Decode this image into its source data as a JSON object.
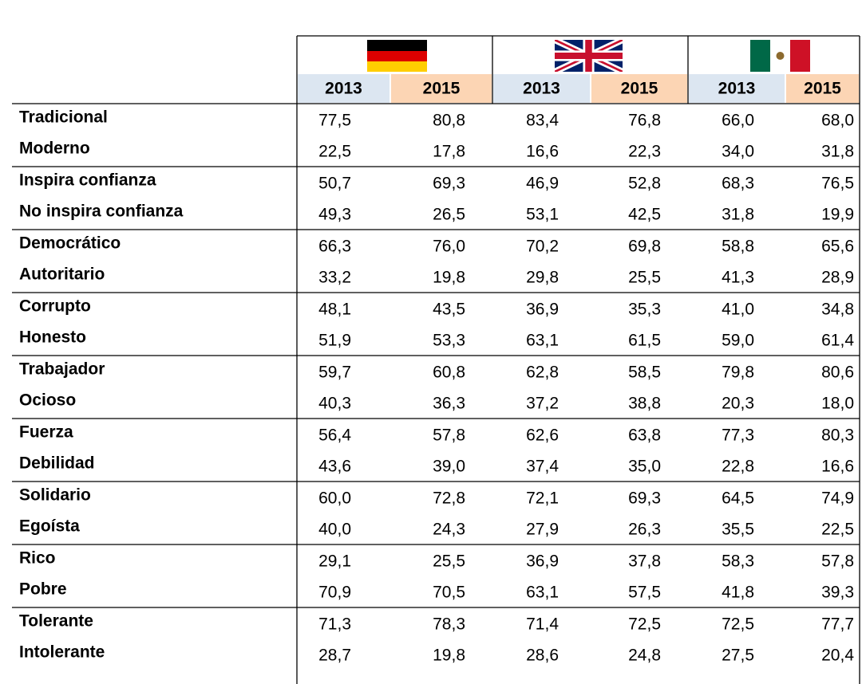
{
  "table": {
    "columns": [
      "2013",
      "2015",
      "2013",
      "2015",
      "2013",
      "2015"
    ],
    "rows": [
      {
        "label": "Tradicional",
        "values": [
          "77,5",
          "80,8",
          "83,4",
          "76,8",
          "66,0",
          "68,0"
        ]
      },
      {
        "label": "Moderno",
        "values": [
          "22,5",
          "17,8",
          "16,6",
          "22,3",
          "34,0",
          "31,8"
        ]
      },
      {
        "label": "Inspira confianza",
        "values": [
          "50,7",
          "69,3",
          "46,9",
          "52,8",
          "68,3",
          "76,5"
        ]
      },
      {
        "label": "No inspira confianza",
        "values": [
          "49,3",
          "26,5",
          "53,1",
          "42,5",
          "31,8",
          "19,9"
        ]
      },
      {
        "label": "Democrático",
        "values": [
          "66,3",
          "76,0",
          "70,2",
          "69,8",
          "58,8",
          "65,6"
        ]
      },
      {
        "label": "Autoritario",
        "values": [
          "33,2",
          "19,8",
          "29,8",
          "25,5",
          "41,3",
          "28,9"
        ]
      },
      {
        "label": "Corrupto",
        "values": [
          "48,1",
          "43,5",
          "36,9",
          "35,3",
          "41,0",
          "34,8"
        ]
      },
      {
        "label": "Honesto",
        "values": [
          "51,9",
          "53,3",
          "63,1",
          "61,5",
          "59,0",
          "61,4"
        ]
      },
      {
        "label": "Trabajador",
        "values": [
          "59,7",
          "60,8",
          "62,8",
          "58,5",
          "79,8",
          "80,6"
        ]
      },
      {
        "label": "Ocioso",
        "values": [
          "40,3",
          "36,3",
          "37,2",
          "38,8",
          "20,3",
          "18,0"
        ]
      },
      {
        "label": "Fuerza",
        "values": [
          "56,4",
          "57,8",
          "62,6",
          "63,8",
          "77,3",
          "80,3"
        ]
      },
      {
        "label": "Debilidad",
        "values": [
          "43,6",
          "39,0",
          "37,4",
          "35,0",
          "22,8",
          "16,6"
        ]
      },
      {
        "label": "Solidario",
        "values": [
          "60,0",
          "72,8",
          "72,1",
          "69,3",
          "64,5",
          "74,9"
        ]
      },
      {
        "label": "Egoísta",
        "values": [
          "40,0",
          "24,3",
          "27,9",
          "26,3",
          "35,5",
          "22,5"
        ]
      },
      {
        "label": "Rico",
        "values": [
          "29,1",
          "25,5",
          "36,9",
          "37,8",
          "58,3",
          "57,8"
        ]
      },
      {
        "label": "Pobre",
        "values": [
          "70,9",
          "70,5",
          "63,1",
          "57,5",
          "41,8",
          "39,3"
        ]
      },
      {
        "label": "Tolerante",
        "values": [
          "71,3",
          "78,3",
          "71,4",
          "72,5",
          "72,5",
          "77,7"
        ]
      },
      {
        "label": "Intolerante",
        "values": [
          "28,7",
          "19,8",
          "28,6",
          "24,8",
          "27,5",
          "20,4"
        ]
      }
    ]
  }
}
